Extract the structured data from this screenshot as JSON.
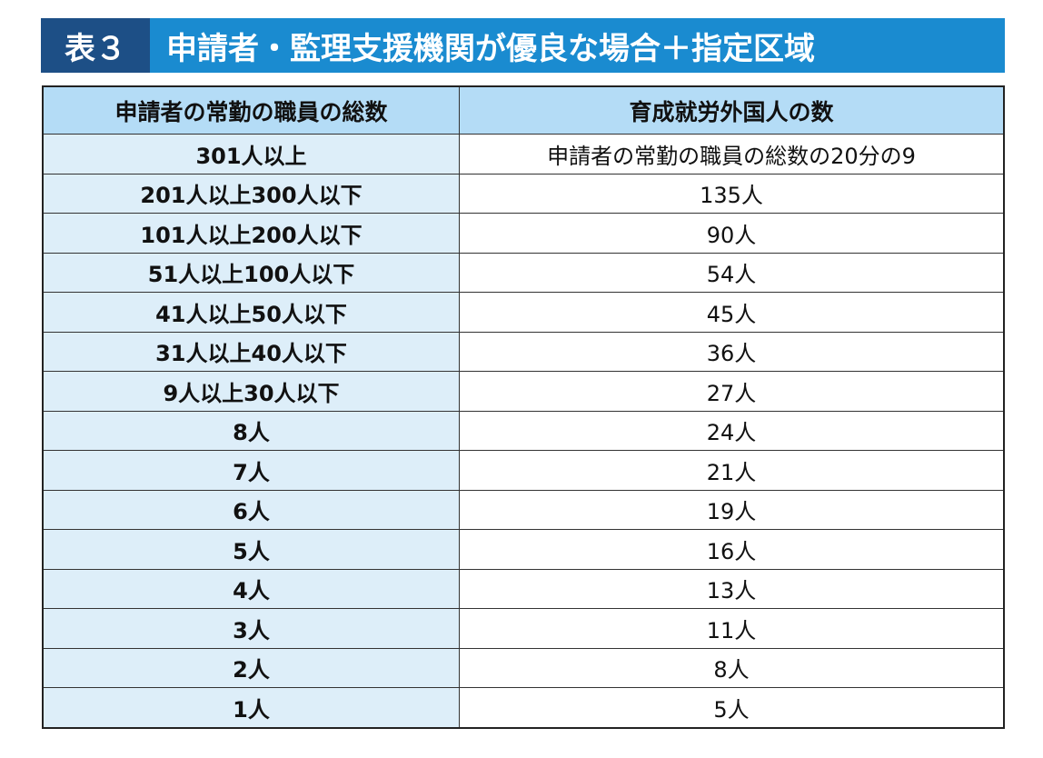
{
  "header": {
    "label": "表３",
    "title": "申請者・監理支援機関が優良な場合＋指定区域"
  },
  "table": {
    "columns": [
      "申請者の常勤の職員の総数",
      "育成就労外国人の数"
    ],
    "rows": [
      [
        "301人以上",
        "申請者の常勤の職員の総数の20分の9"
      ],
      [
        "201人以上300人以下",
        "135人"
      ],
      [
        "101人以上200人以下",
        "90人"
      ],
      [
        "51人以上100人以下",
        "54人"
      ],
      [
        "41人以上50人以下",
        "45人"
      ],
      [
        "31人以上40人以下",
        "36人"
      ],
      [
        "9人以上30人以下",
        "27人"
      ],
      [
        "8人",
        "24人"
      ],
      [
        "7人",
        "21人"
      ],
      [
        "6人",
        "19人"
      ],
      [
        "5人",
        "16人"
      ],
      [
        "4人",
        "13人"
      ],
      [
        "3人",
        "11人"
      ],
      [
        "2人",
        "8人"
      ],
      [
        "1人",
        "5人"
      ]
    ]
  }
}
